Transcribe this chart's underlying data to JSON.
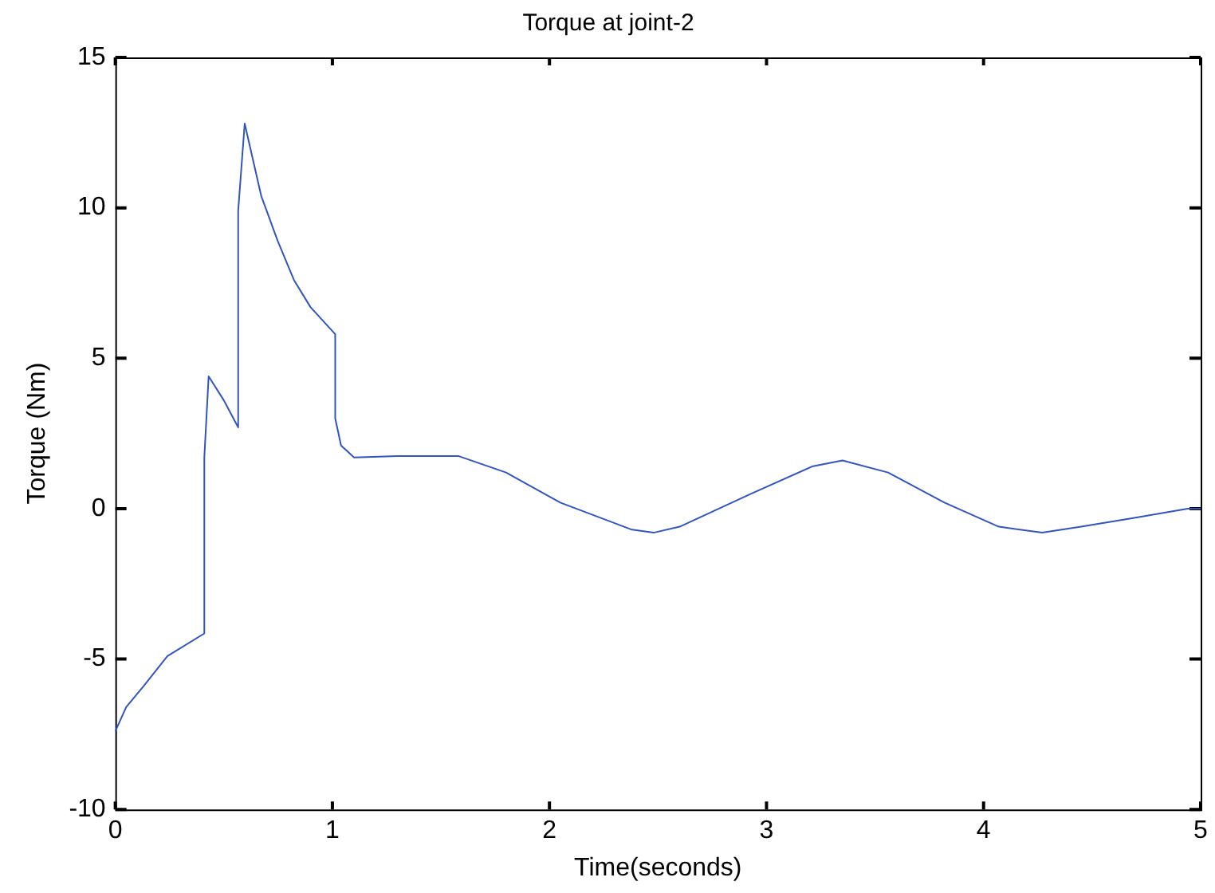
{
  "chart_data": {
    "type": "line",
    "title": "Torque at joint-2",
    "xlabel": "Time(seconds)",
    "ylabel": "Torque (Nm)",
    "xlim": [
      0,
      5
    ],
    "xticks": [
      0,
      1,
      2,
      3,
      4,
      5
    ],
    "ylim": [
      -10,
      15
    ],
    "yticks": [
      -10,
      -5,
      0,
      5,
      10,
      15
    ],
    "grid": false,
    "legend": false,
    "marker": "none",
    "line_style": "solid",
    "series": [
      {
        "color": "#3355bb",
        "x": [
          0,
          0.05,
          0.13,
          0.24,
          0.41,
          0.41,
          0.43,
          0.5,
          0.566,
          0.566,
          0.596,
          0.672,
          0.748,
          0.823,
          0.899,
          1.013,
          1.013,
          1.04,
          1.1,
          1.3,
          1.58,
          1.8,
          2.05,
          2.38,
          2.48,
          2.6,
          2.93,
          3.21,
          3.35,
          3.56,
          3.82,
          4.07,
          4.27,
          4.45,
          4.7,
          4.94,
          5
        ],
        "values": [
          -7.4,
          -6.6,
          -5.9,
          -4.9,
          -4.15,
          1.7,
          4.4,
          3.6,
          2.7,
          9.9,
          12.8,
          10.4,
          8.9,
          7.6,
          6.7,
          5.8,
          3,
          2.1,
          1.7,
          1.75,
          1.75,
          1.2,
          0.2,
          -0.7,
          -0.8,
          -0.6,
          0.5,
          1.4,
          1.6,
          1.2,
          0.2,
          -0.6,
          -0.8,
          -0.6,
          -0.3,
          0,
          0
        ]
      }
    ]
  }
}
